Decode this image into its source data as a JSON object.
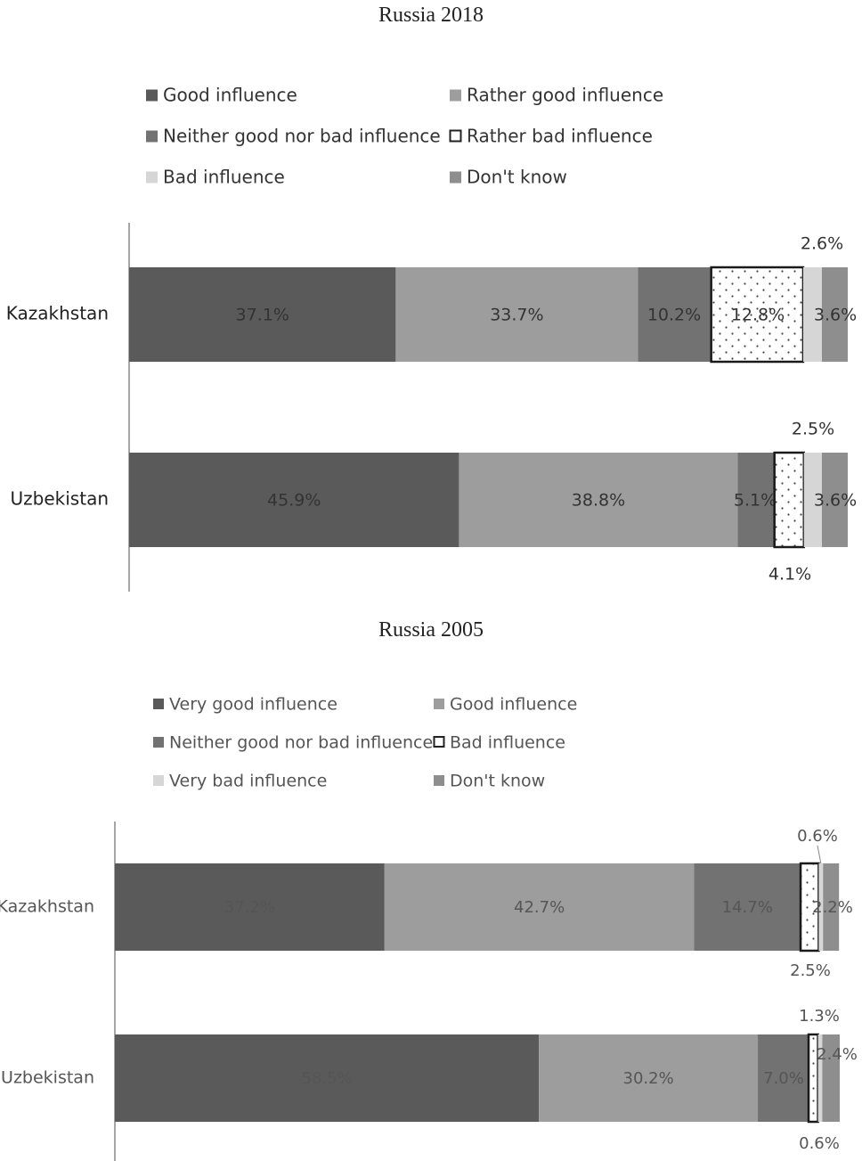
{
  "chart_data": [
    {
      "type": "bar",
      "orientation": "horizontal",
      "stacked": true,
      "title": "Russia 2018",
      "categories": [
        "Kazakhstan",
        "Uzbekistan"
      ],
      "series": [
        {
          "name": "Good influence",
          "values": [
            37.1,
            45.9
          ],
          "color": "#5a5a5a",
          "pattern": "solid"
        },
        {
          "name": "Rather good influence",
          "values": [
            33.7,
            38.8
          ],
          "color": "#9d9d9d",
          "pattern": "solid"
        },
        {
          "name": "Neither good  nor bad influence",
          "values": [
            10.2,
            5.1
          ],
          "color": "#727272",
          "pattern": "solid"
        },
        {
          "name": "Rather bad influence",
          "values": [
            12.8,
            4.1
          ],
          "color": "#ffffff",
          "pattern": "dotted"
        },
        {
          "name": "Bad influence",
          "values": [
            2.6,
            2.5
          ],
          "color": "#d6d6d6",
          "pattern": "solid"
        },
        {
          "name": "Don't know",
          "values": [
            3.6,
            3.6
          ],
          "color": "#8e8e8e",
          "pattern": "solid"
        }
      ],
      "data_labels": [
        [
          "37.1%",
          "33.7%",
          "10.2%",
          "12.8%",
          "2.6%",
          "3.6%"
        ],
        [
          "45.9%",
          "38.8%",
          "5.1%",
          "4.1%",
          "2.5%",
          "3.6%"
        ]
      ],
      "legend_position": "top"
    },
    {
      "type": "bar",
      "orientation": "horizontal",
      "stacked": true,
      "title": "Russia 2005",
      "categories": [
        "Kazakhstan",
        "Uzbekistan"
      ],
      "series": [
        {
          "name": "Very good influence",
          "values": [
            37.2,
            58.5
          ],
          "color": "#5a5a5a",
          "pattern": "solid"
        },
        {
          "name": "Good influence",
          "values": [
            42.7,
            30.2
          ],
          "color": "#9d9d9d",
          "pattern": "solid"
        },
        {
          "name": "Neither good nor bad influence",
          "values": [
            14.7,
            7.0
          ],
          "color": "#727272",
          "pattern": "solid"
        },
        {
          "name": "Bad influence",
          "values": [
            2.5,
            1.3
          ],
          "color": "#ffffff",
          "pattern": "dotted"
        },
        {
          "name": "Very bad influence",
          "values": [
            0.6,
            0.6
          ],
          "color": "#d6d6d6",
          "pattern": "solid"
        },
        {
          "name": "Don't know",
          "values": [
            2.2,
            2.4
          ],
          "color": "#8e8e8e",
          "pattern": "solid"
        }
      ],
      "data_labels": [
        [
          "37.2%",
          "42.7%",
          "14.7%",
          "2.5%",
          "0.6%",
          "2.2%"
        ],
        [
          "58.5%",
          "30.2%",
          "7.0%",
          "1.3%",
          "0.6%",
          "2.4%"
        ]
      ],
      "legend_position": "top"
    }
  ]
}
